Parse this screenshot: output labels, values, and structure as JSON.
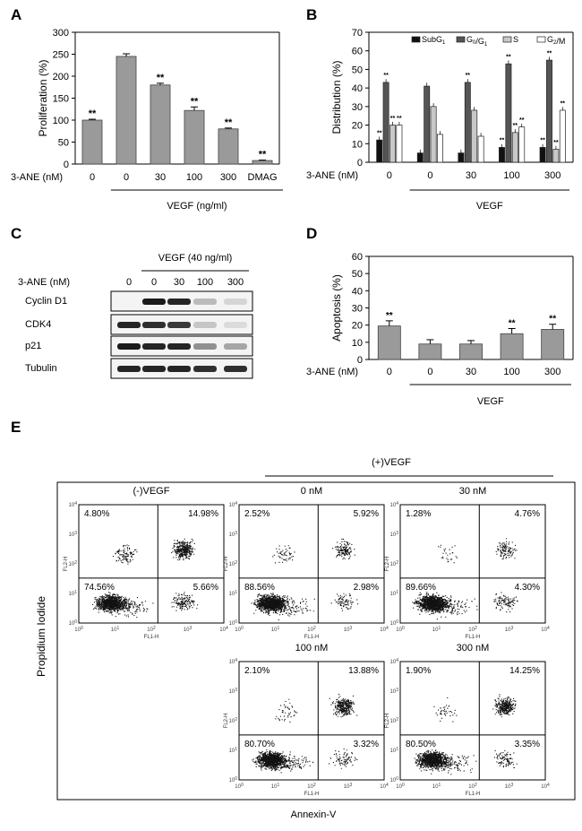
{
  "panels": {
    "A": "A",
    "B": "B",
    "C": "C",
    "D": "D",
    "E": "E"
  },
  "chart_data": [
    {
      "type": "bar",
      "panel": "A",
      "ylabel": "Proliferation (%)",
      "ylim": [
        0,
        300
      ],
      "yticks": [
        0,
        50,
        100,
        150,
        200,
        250,
        300
      ],
      "xlabel_left": "3-ANE (nM)",
      "categories": [
        "0",
        "0",
        "30",
        "100",
        "300",
        "DMAG"
      ],
      "values": [
        100,
        245,
        180,
        122,
        80,
        8
      ],
      "errors": [
        2,
        6,
        4,
        8,
        2,
        1
      ],
      "annotations": [
        "**",
        "",
        "**",
        "**",
        "**",
        "**"
      ],
      "group_label": "VEGF (ng/ml)"
    },
    {
      "type": "bar",
      "panel": "B",
      "ylabel": "Distribution (%)",
      "ylim": [
        0,
        70
      ],
      "yticks": [
        0,
        10,
        20,
        30,
        40,
        50,
        60,
        70
      ],
      "xlabel_left": "3-ANE (nM)",
      "categories": [
        "0",
        "0",
        "30",
        "100",
        "300"
      ],
      "legend": [
        {
          "name": "SubG",
          "sub": "1",
          "color": "#111111"
        },
        {
          "name": "G",
          "sub": "0",
          "mid": "/G",
          "sub2": "1",
          "color": "#555555"
        },
        {
          "name": "S",
          "color": "#c8c8c8"
        },
        {
          "name": "G",
          "sub": "2",
          "mid": "/M",
          "color": "#ffffff"
        }
      ],
      "series": [
        {
          "name": "SubG1",
          "values": [
            12,
            5,
            5,
            8,
            8
          ]
        },
        {
          "name": "G0/G1",
          "values": [
            43,
            41,
            43,
            53,
            55
          ]
        },
        {
          "name": "S",
          "values": [
            20,
            30,
            28,
            16,
            7
          ]
        },
        {
          "name": "G2/M",
          "values": [
            20,
            15,
            14,
            19,
            28
          ]
        }
      ],
      "annotation": "**",
      "group_label": "VEGF"
    },
    {
      "type": "bar",
      "panel": "D",
      "ylabel": "Apoptosis (%)",
      "ylim": [
        0,
        60
      ],
      "yticks": [
        0,
        10,
        20,
        30,
        40,
        50,
        60
      ],
      "xlabel_left": "3-ANE (nM)",
      "categories": [
        "0",
        "0",
        "30",
        "100",
        "300"
      ],
      "values": [
        19.5,
        9,
        9,
        15,
        17.5
      ],
      "errors": [
        3,
        2.5,
        2,
        3,
        3
      ],
      "annotations": [
        "**",
        "",
        "",
        "**",
        "**"
      ],
      "group_label": "VEGF"
    }
  ],
  "western": {
    "title": "VEGF (40 ng/ml)",
    "xlabel": "3-ANE (nM)",
    "lanes": [
      "0",
      "0",
      "30",
      "100",
      "300"
    ],
    "rows": [
      {
        "label": "Cyclin D1",
        "intensity": [
          0.0,
          0.95,
          0.9,
          0.2,
          0.08
        ]
      },
      {
        "label": "CDK4",
        "intensity": [
          0.9,
          0.85,
          0.8,
          0.15,
          0.05
        ]
      },
      {
        "label": "p21",
        "intensity": [
          0.95,
          0.9,
          0.9,
          0.4,
          0.3
        ]
      },
      {
        "label": "Tubulin",
        "intensity": [
          0.9,
          0.9,
          0.9,
          0.85,
          0.85
        ]
      }
    ]
  },
  "flow": {
    "yaxis": "Propidium Iodide",
    "xaxis": "Annexin-V",
    "group_label": "(+)VEGF",
    "fl1": "FL1-H",
    "fl2": "FL2-H",
    "plots": [
      {
        "title": "(-)VEGF",
        "ul": "4.80%",
        "ur": "14.98%",
        "ll": "74.56%",
        "lr": "5.66%"
      },
      {
        "title": "0 nM",
        "ul": "2.52%",
        "ur": "5.92%",
        "ll": "88.56%",
        "lr": "2.98%"
      },
      {
        "title": "30 nM",
        "ul": "1.28%",
        "ur": "4.76%",
        "ll": "89.66%",
        "lr": "4.30%"
      },
      {
        "title": "100 nM",
        "ul": "2.10%",
        "ur": "13.88%",
        "ll": "80.70%",
        "lr": "3.32%"
      },
      {
        "title": "300 nM",
        "ul": "1.90%",
        "ur": "14.25%",
        "ll": "80.50%",
        "lr": "3.35%"
      }
    ]
  }
}
